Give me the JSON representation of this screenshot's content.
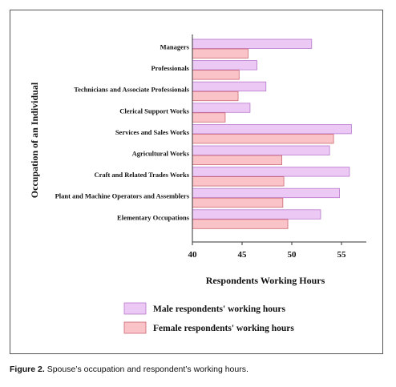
{
  "caption": {
    "figure_label": "Figure 2.",
    "text": "Spouse’s occupation and respondent’s working hours."
  },
  "colors": {
    "male_fill": "#ecc9f5",
    "male_stroke": "#b878cc",
    "female_fill": "#f9c3c8",
    "female_stroke": "#cc6672",
    "axis": "#333333"
  },
  "chart_data": {
    "type": "bar",
    "orientation": "horizontal",
    "xlabel": "Respondents Working Hours",
    "ylabel": "Occupation of an Individual",
    "xlim": [
      40,
      57.5
    ],
    "xticks": [
      40,
      45,
      50,
      55
    ],
    "grid": false,
    "legend_position": "bottom",
    "categories": [
      "Managers",
      "Professionals",
      "Technicians and Associate Professionals",
      "Clerical Support Works",
      "Services and Sales Works",
      "Agricultural Works",
      "Craft and Related Trades Works",
      "Plant and Machine Operators and Assemblers",
      "Elementary Occupations"
    ],
    "series": [
      {
        "name": "Male respondents' working hours",
        "values": [
          52.0,
          46.5,
          47.4,
          45.8,
          56.0,
          53.8,
          55.8,
          54.8,
          52.9
        ]
      },
      {
        "name": "Female respondents' working hours",
        "values": [
          45.6,
          44.7,
          44.6,
          43.3,
          54.2,
          49.0,
          49.2,
          49.1,
          49.6
        ]
      }
    ]
  }
}
